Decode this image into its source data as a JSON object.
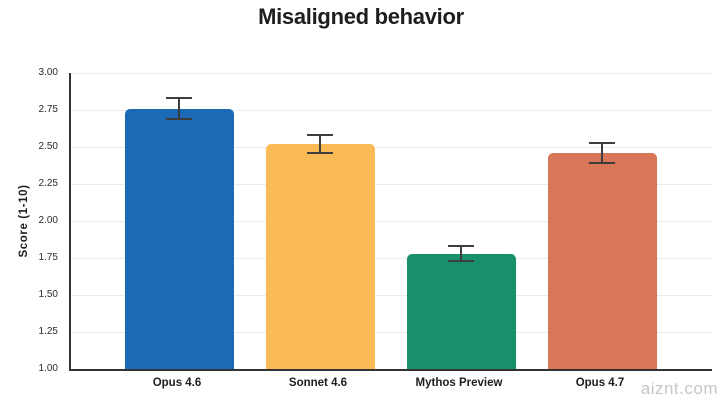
{
  "page": {
    "watermark": "aiznt.com"
  },
  "chart_data": {
    "type": "bar",
    "title": "Misaligned behavior",
    "xlabel": "",
    "ylabel": "Score (1-10)",
    "categories": [
      "Opus 4.6",
      "Sonnet 4.6",
      "Mythos Preview",
      "Opus 4.7"
    ],
    "values": [
      2.76,
      2.52,
      1.78,
      2.46
    ],
    "error_bars": [
      0.07,
      0.06,
      0.05,
      0.07
    ],
    "bar_colors": [
      "#1b6ab3",
      "#fabb57",
      "#17906b",
      "#d87757"
    ],
    "ylim": [
      1.0,
      3.0
    ],
    "ytick_step": 0.25,
    "ytick_labels": [
      "1.00",
      "1.25",
      "1.50",
      "1.75",
      "2.00",
      "2.25",
      "2.50",
      "2.75",
      "3.00"
    ],
    "grid": true,
    "legend_position": "none"
  },
  "colors": {
    "background": "#ffffff",
    "axis": "#333333",
    "gridline": "#ebebeb",
    "error_bar": "#3d3d3d",
    "title_text": "#1e1e1e",
    "tick_text": "#2b2b2b",
    "watermark_text": "#c6c6c6"
  }
}
